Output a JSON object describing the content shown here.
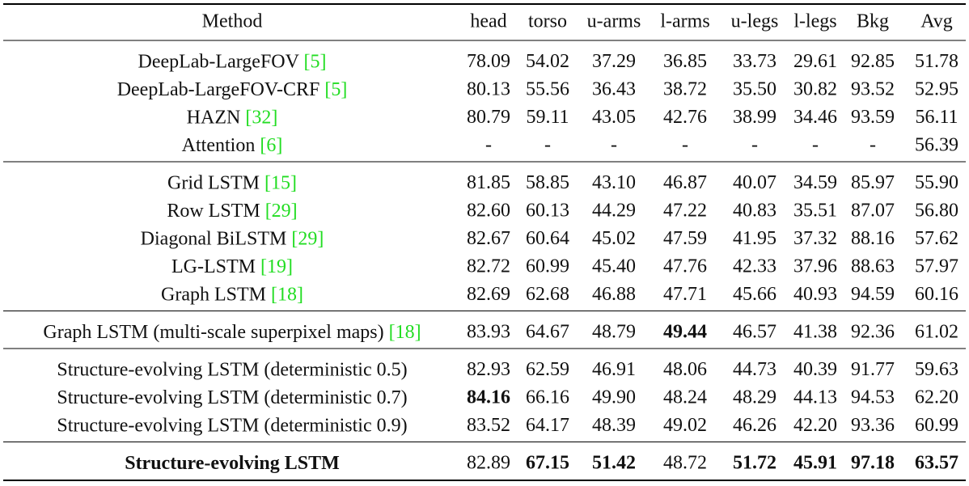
{
  "table": {
    "columns": [
      "Method",
      "head",
      "torso",
      "u-arms",
      "l-arms",
      "u-legs",
      "l-legs",
      "Bkg",
      "Avg"
    ],
    "groups": [
      [
        {
          "method": "DeepLab-LargeFOV",
          "cite": "[5]",
          "cells": [
            "78.09",
            "54.02",
            "37.29",
            "36.85",
            "33.73",
            "29.61",
            "92.85",
            "51.78"
          ],
          "bold": []
        },
        {
          "method": "DeepLab-LargeFOV-CRF",
          "cite": "[5]",
          "cells": [
            "80.13",
            "55.56",
            "36.43",
            "38.72",
            "35.50",
            "30.82",
            "93.52",
            "52.95"
          ],
          "bold": []
        },
        {
          "method": "HAZN",
          "cite": "[32]",
          "cells": [
            "80.79",
            "59.11",
            "43.05",
            "42.76",
            "38.99",
            "34.46",
            "93.59",
            "56.11"
          ],
          "bold": []
        },
        {
          "method": "Attention",
          "cite": "[6]",
          "cells": [
            "-",
            "-",
            "-",
            "-",
            "-",
            "-",
            "-",
            "56.39"
          ],
          "bold": []
        }
      ],
      [
        {
          "method": "Grid LSTM",
          "cite": "[15]",
          "cells": [
            "81.85",
            "58.85",
            "43.10",
            "46.87",
            "40.07",
            "34.59",
            "85.97",
            "55.90"
          ],
          "bold": []
        },
        {
          "method": "Row LSTM",
          "cite": "[29]",
          "cells": [
            "82.60",
            "60.13",
            "44.29",
            "47.22",
            "40.83",
            "35.51",
            "87.07",
            "56.80"
          ],
          "bold": []
        },
        {
          "method": "Diagonal BiLSTM",
          "cite": "[29]",
          "cells": [
            "82.67",
            "60.64",
            "45.02",
            "47.59",
            "41.95",
            "37.32",
            "88.16",
            "57.62"
          ],
          "bold": []
        },
        {
          "method": "LG-LSTM",
          "cite": "[19]",
          "cells": [
            "82.72",
            "60.99",
            "45.40",
            "47.76",
            "42.33",
            "37.96",
            "88.63",
            "57.97"
          ],
          "bold": []
        },
        {
          "method": "Graph LSTM",
          "cite": "[18]",
          "cells": [
            "82.69",
            "62.68",
            "46.88",
            "47.71",
            "45.66",
            "40.93",
            "94.59",
            "60.16"
          ],
          "bold": []
        }
      ],
      [
        {
          "method": "Graph LSTM (multi-scale superpixel maps)",
          "cite": "[18]",
          "cells": [
            "83.93",
            "64.67",
            "48.79",
            "49.44",
            "46.57",
            "41.38",
            "92.36",
            "61.02"
          ],
          "bold": [
            3
          ]
        }
      ],
      [
        {
          "method": "Structure-evolving LSTM (deterministic 0.5)",
          "cells": [
            "82.93",
            "62.59",
            "46.91",
            "48.06",
            "44.73",
            "40.39",
            "91.77",
            "59.63"
          ],
          "bold": []
        },
        {
          "method": "Structure-evolving LSTM (deterministic 0.7)",
          "cells": [
            "84.16",
            "66.16",
            "49.90",
            "48.24",
            "48.29",
            "44.13",
            "94.53",
            "62.20"
          ],
          "bold": [
            0
          ]
        },
        {
          "method": "Structure-evolving LSTM (deterministic 0.9)",
          "cells": [
            "83.52",
            "64.17",
            "48.39",
            "49.02",
            "46.26",
            "42.20",
            "93.36",
            "60.99"
          ],
          "bold": []
        }
      ],
      [
        {
          "method": "Structure-evolving LSTM",
          "cells": [
            "82.89",
            "67.15",
            "51.42",
            "48.72",
            "51.72",
            "45.91",
            "97.18",
            "63.57"
          ],
          "bold": [
            1,
            2,
            4,
            5,
            6,
            7
          ],
          "method_bold": true
        }
      ]
    ]
  }
}
